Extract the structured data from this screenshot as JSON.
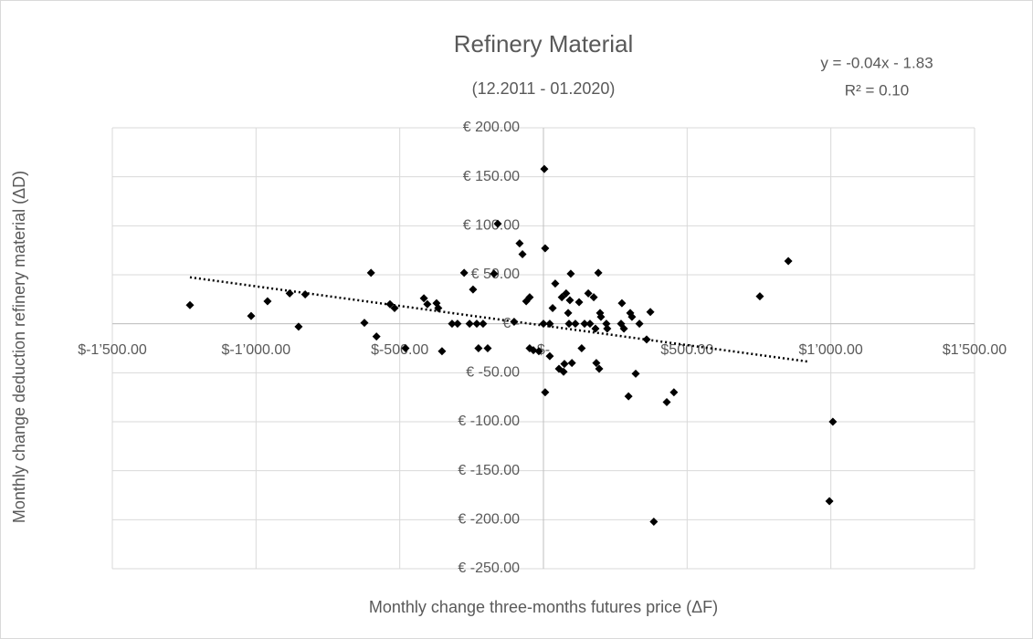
{
  "chart_data": {
    "type": "scatter",
    "title": "Refinery Material",
    "subtitle": "(12.2011 - 01.2020)",
    "annotations": [
      "y = -0.04x - 1.83",
      "R² = 0.10"
    ],
    "x_label": "Monthly change three-months futures price (ΔF)",
    "y_label": "Monthly change deduction refinery material (ΔD)",
    "color": "#000000",
    "grid": true,
    "xlim": [
      -1500,
      1500
    ],
    "ylim": [
      -250,
      200
    ],
    "xticks": [
      {
        "value": -1500,
        "label": "$-1’500.00"
      },
      {
        "value": -1000,
        "label": "$-1’000.00"
      },
      {
        "value": -500,
        "label": "$-500.00"
      },
      {
        "value": 0,
        "label": "$-"
      },
      {
        "value": 500,
        "label": "$500.00"
      },
      {
        "value": 1000,
        "label": "$1’000.00"
      },
      {
        "value": 1500,
        "label": "$1’500.00"
      }
    ],
    "yticks": [
      {
        "value": 200,
        "label": "€ 200.00"
      },
      {
        "value": 150,
        "label": "€ 150.00"
      },
      {
        "value": 100,
        "label": "€ 100.00"
      },
      {
        "value": 50,
        "label": "€ 50.00"
      },
      {
        "value": 0,
        "label": "€ -"
      },
      {
        "value": -50,
        "label": "€ -50.00"
      },
      {
        "value": -100,
        "label": "€ -100.00"
      },
      {
        "value": -150,
        "label": "€ -150.00"
      },
      {
        "value": -200,
        "label": "€ -200.00"
      },
      {
        "value": -250,
        "label": "€ -250.00"
      }
    ],
    "x": [
      -1230,
      -1017,
      -960,
      -883,
      -852,
      -829,
      -623,
      -600,
      -581,
      -534,
      -518,
      -480,
      -416,
      -404,
      -372,
      -366,
      -353,
      -318,
      -299,
      -276,
      -257,
      -245,
      -232,
      -226,
      -210,
      -194,
      -172,
      -159,
      -83,
      -73,
      -102,
      -60,
      -48,
      -48,
      -35,
      -16,
      0,
      3,
      6,
      6,
      22,
      22,
      32,
      41,
      54,
      64,
      70,
      73,
      79,
      86,
      89,
      92,
      95,
      99,
      111,
      124,
      133,
      143,
      156,
      162,
      175,
      181,
      184,
      191,
      194,
      197,
      200,
      219,
      222,
      270,
      273,
      280,
      296,
      302,
      308,
      321,
      334,
      359,
      372,
      429,
      454,
      384,
      753,
      852,
      1007,
      995
    ],
    "y": [
      19,
      8,
      23,
      31,
      -3,
      30,
      1,
      52,
      -13,
      20,
      16,
      -25,
      26,
      20,
      21,
      16,
      -28,
      0,
      0,
      52,
      0,
      35,
      0,
      -25,
      0,
      -25,
      51,
      102,
      82,
      71,
      2,
      23,
      27,
      -25,
      -27,
      -28,
      0,
      158,
      77,
      -70,
      0,
      -33,
      16,
      41,
      -46,
      27,
      -49,
      -41,
      31,
      11,
      0,
      24,
      51,
      -40,
      0,
      22,
      -25,
      0,
      31,
      0,
      27,
      -5,
      -40,
      52,
      -46,
      11,
      7,
      0,
      -5,
      0,
      21,
      -5,
      -74,
      11,
      7,
      -51,
      0,
      -16,
      12,
      -80,
      -70,
      -202,
      28,
      64,
      -100,
      -181
    ],
    "trendline": {
      "x": [
        -1230,
        920
      ],
      "y": [
        47.4,
        -38.6
      ]
    }
  }
}
